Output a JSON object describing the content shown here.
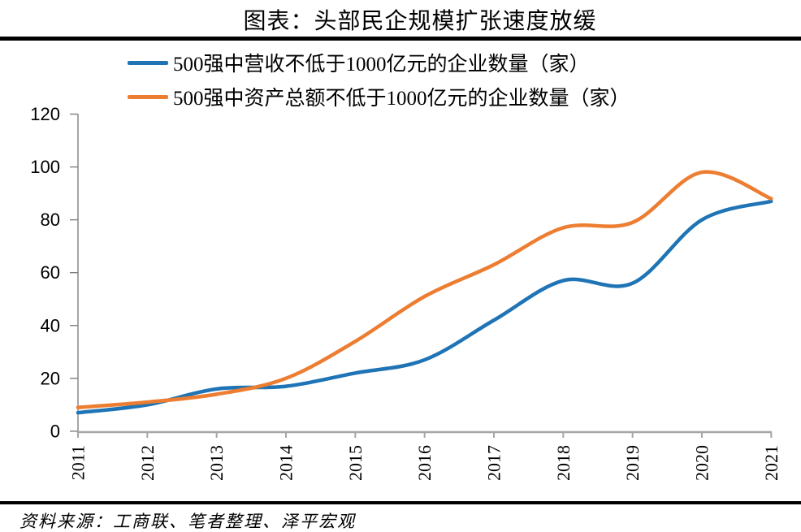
{
  "title": "图表：头部民企规模扩张速度放缓",
  "source_note": "资料来源：工商联、笔者整理、泽平宏观",
  "colors": {
    "series_blue": "#1F74B5",
    "series_orange": "#ED7D31",
    "y_axis": "#7F7F7F",
    "x_axis": "#A6A6A6",
    "divider": "#000000",
    "text": "#000000"
  },
  "chart_data": {
    "type": "line",
    "smooth": true,
    "grid": false,
    "legend_position": "top-left",
    "title": "图表：头部民企规模扩张速度放缓",
    "xlabel": "",
    "ylabel": "",
    "categories": [
      "2011",
      "2012",
      "2013",
      "2014",
      "2015",
      "2016",
      "2017",
      "2018",
      "2019",
      "2020",
      "2021"
    ],
    "yticks": [
      0,
      20,
      40,
      60,
      80,
      100,
      120
    ],
    "ylim": [
      0,
      120
    ],
    "series": [
      {
        "name": "500强中营收不低于1000亿元的企业数量（家）",
        "color": "#1F74B5",
        "values": [
          7,
          10,
          16,
          17,
          22,
          27,
          42,
          57,
          56,
          80,
          87
        ]
      },
      {
        "name": "500强中资产总额不低于1000亿元的企业数量（家）",
        "color": "#ED7D31",
        "values": [
          9,
          11,
          14,
          20,
          34,
          51,
          63,
          77,
          79,
          98,
          88
        ]
      }
    ]
  }
}
